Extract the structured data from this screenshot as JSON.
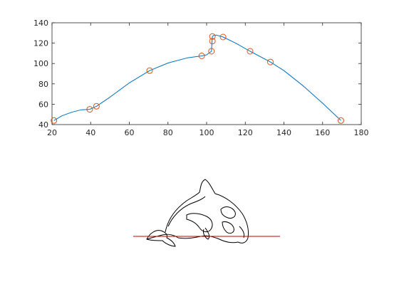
{
  "figure": {
    "background": "#ffffff",
    "axes_color": "#262626"
  },
  "chart_data": {
    "type": "line",
    "title": "",
    "xlabel": "",
    "ylabel": "",
    "xlim": [
      20,
      180
    ],
    "ylim": [
      40,
      140
    ],
    "xticks": [
      20,
      40,
      60,
      80,
      100,
      120,
      140,
      160,
      180
    ],
    "yticks": [
      40,
      60,
      80,
      100,
      120,
      140
    ],
    "grid": false,
    "legend": "none",
    "series": [
      {
        "kind": "marker",
        "marker": "circle",
        "color": "#D95319",
        "x": [
          21,
          39.5,
          43,
          70.5,
          97.5,
          102.5,
          103,
          103,
          108.5,
          122.5,
          133,
          169.5
        ],
        "y": [
          44,
          55,
          58,
          93,
          107.5,
          112,
          122,
          126.5,
          126,
          112,
          101.5,
          44
        ]
      },
      {
        "kind": "line",
        "color": "#0072BD",
        "x": [
          21,
          25,
          30,
          35,
          39.5,
          43,
          50,
          60,
          70.5,
          80,
          90,
          97.5,
          100,
          102.5,
          102.8,
          103,
          103.5,
          105,
          108.5,
          115,
          122.5,
          133,
          140,
          150,
          160,
          169.5
        ],
        "y": [
          44,
          48.5,
          52,
          54.5,
          55,
          58,
          67,
          81,
          93,
          100.5,
          105.5,
          107.5,
          108.5,
          112,
          122,
          126.5,
          127.5,
          128,
          126,
          120,
          112,
          101.5,
          93,
          78,
          61,
          44
        ]
      }
    ]
  },
  "image_panel": {
    "subject_icon": "orca-whale-outline",
    "line_color": "#C00000",
    "outline_color": "#000000"
  }
}
